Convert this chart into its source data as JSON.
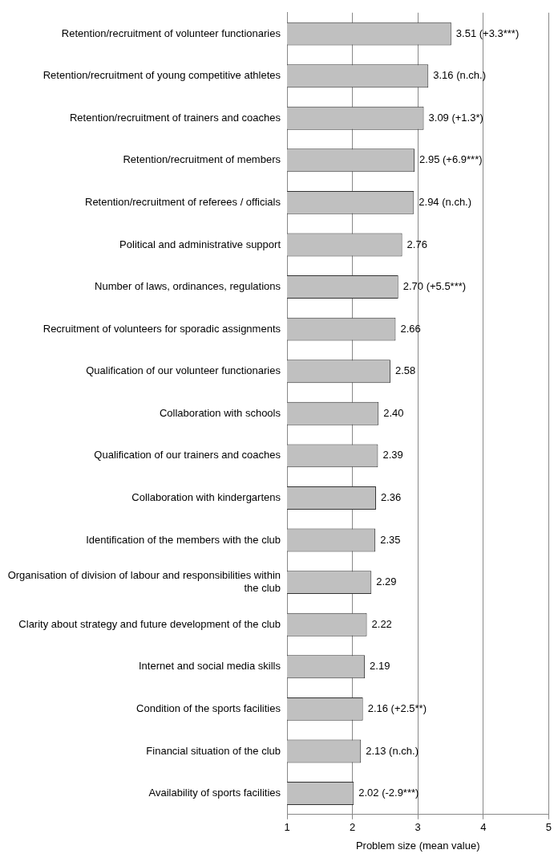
{
  "chart_data": {
    "type": "bar",
    "orientation": "horizontal",
    "xlabel": "Problem size (mean value)",
    "categories": [
      "Retention/recruitment of volunteer functionaries",
      "Retention/recruitment of young competitive athletes",
      "Retention/recruitment of trainers and coaches",
      "Retention/recruitment of members",
      "Retention/recruitment of referees / officials",
      "Political and administrative support",
      "Number of laws, ordinances, regulations",
      "Recruitment of volunteers for sporadic assignments",
      "Qualification of our volunteer functionaries",
      "Collaboration with schools",
      "Qualification of our trainers and coaches",
      "Collaboration with kindergartens",
      "Identification of the members with the club",
      "Organisation of division of labour and responsibilities within the club",
      "Clarity about strategy and future development of the club",
      "Internet and social media skills",
      "Condition of the sports facilities",
      "Financial situation of the club",
      "Availability of sports facilities"
    ],
    "values": [
      3.51,
      3.16,
      3.09,
      2.95,
      2.94,
      2.76,
      2.7,
      2.66,
      2.58,
      2.4,
      2.39,
      2.36,
      2.35,
      2.29,
      2.22,
      2.19,
      2.16,
      2.13,
      2.02
    ],
    "value_labels": [
      "3.51 (+3.3***)",
      "3.16 (n.ch.)",
      "3.09 (+1.3*)",
      "2.95 (+6.9***)",
      "2.94 (n.ch.)",
      "2.76",
      "2.70 (+5.5***)",
      "2.66",
      "2.58",
      "2.40",
      "2.39",
      "2.36",
      "2.35",
      "2.29",
      "2.22",
      "2.19",
      "2.16 (+2.5**)",
      "2.13 (n.ch.)",
      "2.02 (-2.9***)"
    ],
    "color": "#c0c0c0",
    "xlim": [
      1,
      5
    ],
    "xticks": [
      1,
      2,
      3,
      4,
      5
    ],
    "grid": "x"
  }
}
